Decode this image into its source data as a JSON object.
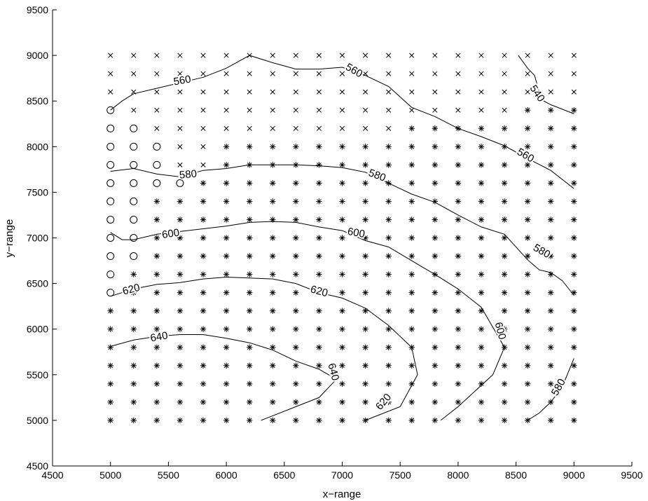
{
  "chart_data": {
    "type": "scatter",
    "title": "",
    "xlabel": "x−range",
    "ylabel": "y−range",
    "xlim": [
      4500,
      9500
    ],
    "ylim": [
      4500,
      9500
    ],
    "xticks": [
      4500,
      5000,
      5500,
      6000,
      6500,
      7000,
      7500,
      8000,
      8500,
      9000,
      9500
    ],
    "yticks": [
      4500,
      5000,
      5500,
      6000,
      6500,
      7000,
      7500,
      8000,
      8500,
      9000,
      9500
    ],
    "xtick_labels": [
      "4500",
      "5000",
      "5500",
      "6000",
      "6500",
      "7000",
      "7500",
      "8000",
      "8500",
      "9000",
      "9500"
    ],
    "ytick_labels": [
      "4500",
      "5000",
      "5500",
      "6000",
      "6500",
      "7000",
      "7500",
      "8000",
      "8500",
      "9000",
      "9500"
    ],
    "grid": false,
    "marker_grid": {
      "x": [
        5000,
        5200,
        5400,
        5600,
        5800,
        6000,
        6200,
        6400,
        6600,
        6800,
        7000,
        7200,
        7400,
        7600,
        7800,
        8000,
        8200,
        8400,
        8600,
        8800,
        9000
      ],
      "y": [
        5000,
        5200,
        5400,
        5600,
        5800,
        6000,
        6200,
        6400,
        6600,
        6800,
        7000,
        7200,
        7400,
        7600,
        7800,
        8000,
        8200,
        8400,
        8600,
        8800,
        9000
      ],
      "rows": [
        "xxxxxxxxxxxxxxxxxxxxx",
        "xxxxxxxxxxxxxxxxxxxxx",
        "xxxxxxxxxxxxxxxxxxxxx",
        "oxxxxxxxxxxxxxxxxx***",
        "ooxxxxxxxxxxx********",
        "oooxx****************",
        "oooxx****************",
        "oooo*****************",
        "oo*******************",
        "oo*******************",
        "oo*******************",
        "oo*******************",
        "o********************",
        "o********************",
        "*********************",
        "*********************",
        "*********************",
        "*********************",
        "*********************",
        "*********************",
        "*********************"
      ]
    },
    "contours": [
      {
        "level": 540,
        "points": [
          [
            8520,
            9000
          ],
          [
            8600,
            8860
          ],
          [
            8660,
            8780
          ],
          [
            8700,
            8600
          ],
          [
            8740,
            8500
          ],
          [
            8800,
            8460
          ],
          [
            9000,
            8360
          ]
        ]
      },
      {
        "level": 560,
        "points": [
          [
            5000,
            8400
          ],
          [
            5100,
            8500
          ],
          [
            5200,
            8580
          ],
          [
            5400,
            8640
          ],
          [
            5600,
            8700
          ],
          [
            5800,
            8760
          ],
          [
            6000,
            8860
          ],
          [
            6200,
            9000
          ],
          [
            6400,
            8920
          ],
          [
            6600,
            8850
          ],
          [
            6800,
            8850
          ],
          [
            7000,
            8870
          ],
          [
            7200,
            8780
          ],
          [
            7400,
            8660
          ],
          [
            7600,
            8430
          ],
          [
            7800,
            8330
          ],
          [
            8000,
            8200
          ],
          [
            8200,
            8110
          ],
          [
            8400,
            8010
          ],
          [
            8600,
            7870
          ],
          [
            8800,
            7740
          ],
          [
            9000,
            7540
          ]
        ]
      },
      {
        "level": 580,
        "points": [
          [
            5000,
            7730
          ],
          [
            5200,
            7760
          ],
          [
            5400,
            7700
          ],
          [
            5600,
            7670
          ],
          [
            5800,
            7740
          ],
          [
            6000,
            7760
          ],
          [
            6200,
            7800
          ],
          [
            6400,
            7800
          ],
          [
            6600,
            7800
          ],
          [
            6800,
            7790
          ],
          [
            7000,
            7770
          ],
          [
            7200,
            7720
          ],
          [
            7400,
            7600
          ],
          [
            7600,
            7480
          ],
          [
            7800,
            7390
          ],
          [
            8000,
            7250
          ],
          [
            8200,
            7120
          ],
          [
            8400,
            7040
          ],
          [
            8600,
            6760
          ],
          [
            8700,
            6650
          ],
          [
            8800,
            6620
          ],
          [
            8900,
            6530
          ],
          [
            9000,
            6370
          ]
        ]
      },
      {
        "level": 600,
        "points": [
          [
            5000,
            7060
          ],
          [
            5100,
            6980
          ],
          [
            5200,
            6980
          ],
          [
            5400,
            7040
          ],
          [
            5600,
            7070
          ],
          [
            5800,
            7100
          ],
          [
            6000,
            7130
          ],
          [
            6200,
            7170
          ],
          [
            6400,
            7180
          ],
          [
            6600,
            7170
          ],
          [
            6800,
            7120
          ],
          [
            7000,
            7080
          ],
          [
            7200,
            6970
          ],
          [
            7400,
            6900
          ],
          [
            7600,
            6750
          ],
          [
            7800,
            6600
          ],
          [
            8000,
            6440
          ],
          [
            8200,
            6240
          ],
          [
            8400,
            5800
          ],
          [
            8300,
            5500
          ],
          [
            8000,
            5150
          ],
          [
            7850,
            5000
          ]
        ]
      },
      {
        "level": 620,
        "points": [
          [
            5000,
            6360
          ],
          [
            5200,
            6440
          ],
          [
            5400,
            6490
          ],
          [
            5600,
            6510
          ],
          [
            5800,
            6550
          ],
          [
            6000,
            6570
          ],
          [
            6200,
            6560
          ],
          [
            6400,
            6550
          ],
          [
            6600,
            6500
          ],
          [
            6800,
            6400
          ],
          [
            7000,
            6340
          ],
          [
            7200,
            6230
          ],
          [
            7400,
            6040
          ],
          [
            7600,
            5800
          ],
          [
            7650,
            5500
          ],
          [
            7500,
            5150
          ],
          [
            7200,
            5000
          ]
        ]
      },
      {
        "level": 640,
        "points": [
          [
            5000,
            5810
          ],
          [
            5200,
            5880
          ],
          [
            5400,
            5920
          ],
          [
            5600,
            5940
          ],
          [
            5800,
            5940
          ],
          [
            6000,
            5900
          ],
          [
            6200,
            5850
          ],
          [
            6400,
            5770
          ],
          [
            6600,
            5650
          ],
          [
            6800,
            5560
          ],
          [
            6950,
            5450
          ],
          [
            6800,
            5250
          ],
          [
            6600,
            5150
          ],
          [
            6300,
            5000
          ]
        ]
      },
      {
        "level": 580,
        "points": [
          [
            8600,
            5000
          ],
          [
            8700,
            5080
          ],
          [
            8800,
            5200
          ],
          [
            8900,
            5370
          ],
          [
            9000,
            5680
          ]
        ]
      }
    ],
    "contour_labels": [
      {
        "text": "560",
        "x": 5620,
        "y": 8720,
        "angle": -10
      },
      {
        "text": "560",
        "x": 7100,
        "y": 8830,
        "angle": 30
      },
      {
        "text": "540",
        "x": 8680,
        "y": 8580,
        "angle": 55
      },
      {
        "text": "560",
        "x": 8580,
        "y": 7900,
        "angle": 30
      },
      {
        "text": "580",
        "x": 5670,
        "y": 7690,
        "angle": -5
      },
      {
        "text": "580",
        "x": 7300,
        "y": 7680,
        "angle": 20
      },
      {
        "text": "580",
        "x": 8720,
        "y": 6850,
        "angle": 30
      },
      {
        "text": "600",
        "x": 5520,
        "y": 7040,
        "angle": -8
      },
      {
        "text": "600",
        "x": 7120,
        "y": 7050,
        "angle": 10
      },
      {
        "text": "600",
        "x": 8360,
        "y": 5980,
        "angle": 75
      },
      {
        "text": "620",
        "x": 5180,
        "y": 6430,
        "angle": -15
      },
      {
        "text": "620",
        "x": 6800,
        "y": 6410,
        "angle": 15
      },
      {
        "text": "620",
        "x": 7360,
        "y": 5200,
        "angle": -50
      },
      {
        "text": "640",
        "x": 5420,
        "y": 5910,
        "angle": -10
      },
      {
        "text": "640",
        "x": 6920,
        "y": 5530,
        "angle": 75
      },
      {
        "text": "580",
        "x": 8870,
        "y": 5360,
        "angle": -60
      }
    ]
  }
}
